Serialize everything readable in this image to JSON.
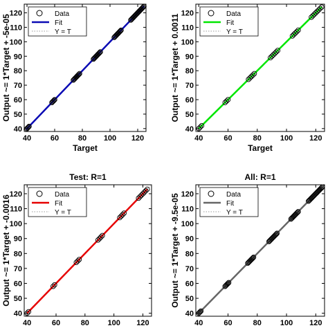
{
  "chart_data": [
    {
      "type": "scatter",
      "title": "",
      "xlabel": "Target",
      "ylabel": "Output ~= 1*Target + -5e-05",
      "xlim": [
        38,
        126
      ],
      "ylim": [
        38,
        126
      ],
      "xticks": [
        40,
        60,
        80,
        100,
        120
      ],
      "yticks": [
        40,
        50,
        60,
        70,
        80,
        90,
        100,
        110,
        120
      ],
      "grid": false,
      "legend_position": "top-left",
      "series": [
        {
          "name": "Data",
          "marker": "circle",
          "color": "#000000",
          "x": [
            39.5,
            40,
            40.5,
            41,
            41.5,
            58,
            58.5,
            59,
            59.5,
            60,
            73.5,
            74,
            74.5,
            75,
            75.5,
            76,
            76.5,
            77,
            77.5,
            78,
            88,
            88.5,
            89,
            89.5,
            90,
            90.5,
            91,
            91.5,
            92,
            92.5,
            93,
            103,
            103.5,
            104,
            104.5,
            105,
            105.5,
            106,
            106.5,
            107,
            107.5,
            108,
            115,
            115.5,
            116,
            116.5,
            117,
            117.5,
            118,
            118.5,
            119,
            119.5,
            120,
            120.5,
            121,
            121.5,
            122,
            122.5,
            123,
            123.5,
            124,
            124.5
          ],
          "y": [
            39.5,
            40,
            40.5,
            41,
            41.5,
            58,
            58.5,
            59,
            59.5,
            60,
            73.5,
            74,
            74.5,
            75,
            75.5,
            76,
            76.5,
            77,
            77.5,
            78,
            88,
            88.5,
            89,
            89.5,
            90,
            90.5,
            91,
            91.5,
            92,
            92.5,
            93,
            103,
            103.5,
            104,
            104.5,
            105,
            105.5,
            106,
            106.5,
            107,
            107.5,
            108,
            115,
            115.5,
            116,
            116.5,
            117,
            117.5,
            118,
            118.5,
            119,
            119.5,
            120,
            120.5,
            121,
            121.5,
            122,
            122.5,
            123,
            123.5,
            124,
            124.5
          ]
        },
        {
          "name": "Fit",
          "style": "solid",
          "color": "#0a0ab4"
        },
        {
          "name": "Y = T",
          "style": "dotted",
          "color": "#999999"
        }
      ]
    },
    {
      "type": "scatter",
      "title": "",
      "xlabel": "Target",
      "ylabel": "Output ~= 1*Target + 0.0011",
      "xlim": [
        38,
        126
      ],
      "ylim": [
        38,
        126
      ],
      "xticks": [
        40,
        60,
        80,
        100,
        120
      ],
      "yticks": [
        40,
        50,
        60,
        70,
        80,
        90,
        100,
        110,
        120
      ],
      "grid": false,
      "legend_position": "top-left",
      "series": [
        {
          "name": "Data",
          "marker": "circle",
          "color": "#000000",
          "x": [
            40,
            41,
            42,
            58,
            59,
            60,
            74,
            75,
            76,
            77,
            78,
            89,
            90,
            91,
            92,
            93,
            94,
            104,
            105,
            106,
            107,
            108,
            117,
            118,
            119,
            120,
            121,
            122,
            123,
            124
          ],
          "y": [
            40,
            41,
            42,
            58,
            59,
            60,
            74,
            75,
            76,
            77,
            78,
            89,
            90,
            91,
            92,
            93,
            94,
            104,
            105,
            106,
            107,
            108,
            117,
            118,
            119,
            120,
            121,
            122,
            123,
            124
          ]
        },
        {
          "name": "Fit",
          "style": "solid",
          "color": "#00e600"
        },
        {
          "name": "Y = T",
          "style": "dotted",
          "color": "#999999"
        }
      ]
    },
    {
      "type": "scatter",
      "title": "Test: R=1",
      "xlabel": "",
      "ylabel": "Output ~= 1*Target + -0.0016",
      "xlim": [
        38,
        126
      ],
      "ylim": [
        38,
        126
      ],
      "xticks": [
        40,
        60,
        80,
        100,
        120
      ],
      "yticks": [
        40,
        50,
        60,
        70,
        80,
        90,
        100,
        110,
        120
      ],
      "grid": false,
      "legend_position": "top-left",
      "series": [
        {
          "name": "Data",
          "marker": "circle",
          "color": "#000000",
          "x": [
            40,
            41,
            58,
            59,
            74,
            75,
            76,
            89,
            90,
            91,
            92,
            104,
            105,
            106,
            107,
            117,
            118,
            119,
            120,
            121,
            122,
            123
          ],
          "y": [
            40,
            41,
            58,
            59,
            74,
            75,
            76,
            89,
            90,
            91,
            92,
            104,
            105,
            106,
            107,
            117,
            118,
            119,
            120,
            121,
            122,
            123
          ]
        },
        {
          "name": "Fit",
          "style": "solid",
          "color": "#e60000"
        },
        {
          "name": "Y = T",
          "style": "dotted",
          "color": "#999999"
        }
      ]
    },
    {
      "type": "scatter",
      "title": "All: R=1",
      "xlabel": "",
      "ylabel": "Output ~= 1*Target + -9.5e-05",
      "xlim": [
        38,
        126
      ],
      "ylim": [
        38,
        126
      ],
      "xticks": [
        40,
        60,
        80,
        100,
        120
      ],
      "yticks": [
        40,
        50,
        60,
        70,
        80,
        90,
        100,
        110,
        120
      ],
      "grid": false,
      "legend_position": "top-left",
      "series": [
        {
          "name": "Data",
          "marker": "circle",
          "color": "#000000",
          "x": [
            40,
            40.5,
            41,
            41.5,
            58,
            58.5,
            59,
            59.5,
            60,
            60.5,
            73.5,
            74,
            74.5,
            75,
            75.5,
            76,
            76.5,
            77,
            77.5,
            88,
            88.5,
            89,
            89.5,
            90,
            90.5,
            91,
            91.5,
            92,
            92.5,
            93,
            93.5,
            103,
            103.5,
            104,
            104.5,
            105,
            105.5,
            106,
            106.5,
            107,
            107.5,
            108,
            115,
            115.5,
            116,
            116.5,
            117,
            117.5,
            118,
            118.5,
            119,
            119.5,
            120,
            120.5,
            121,
            121.5,
            122,
            122.5,
            123,
            123.5,
            124,
            124.5
          ],
          "y": [
            40,
            40.5,
            41,
            41.5,
            58,
            58.5,
            59,
            59.5,
            60,
            60.5,
            73.5,
            74,
            74.5,
            75,
            75.5,
            76,
            76.5,
            77,
            77.5,
            88,
            88.5,
            89,
            89.5,
            90,
            90.5,
            91,
            91.5,
            92,
            92.5,
            93,
            93.5,
            103,
            103.5,
            104,
            104.5,
            105,
            105.5,
            106,
            106.5,
            107,
            107.5,
            108,
            115,
            115.5,
            116,
            116.5,
            117,
            117.5,
            118,
            118.5,
            119,
            119.5,
            120,
            120.5,
            121,
            121.5,
            122,
            122.5,
            123,
            123.5,
            124,
            124.5
          ]
        },
        {
          "name": "Fit",
          "style": "solid",
          "color": "#666666"
        },
        {
          "name": "Y = T",
          "style": "dotted",
          "color": "#999999"
        }
      ]
    }
  ]
}
